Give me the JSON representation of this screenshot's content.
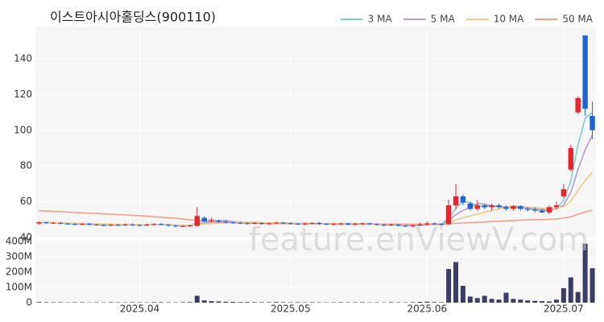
{
  "chart_data": {
    "type": "candlestick",
    "title": "이스트아시아홀딩스(900110)",
    "watermark": "feature.enViewV.com",
    "up_color": "#e8242c",
    "down_color": "#1c64d8",
    "volume_color": "#3a3d68",
    "grid": true,
    "legend": "top-right",
    "xlim": [
      -0.5,
      77.5
    ],
    "xticks": [
      {
        "value": 14,
        "label": "2025.04"
      },
      {
        "value": 35,
        "label": "2025.05"
      },
      {
        "value": 54,
        "label": "2025.06"
      },
      {
        "value": 73,
        "label": "2025.07"
      }
    ],
    "ylim": [
      40,
      158
    ],
    "yticks": [
      40,
      60,
      80,
      100,
      120,
      140
    ],
    "volume_ylim": [
      0,
      410000000
    ],
    "volume_yticks": [
      {
        "value": 0,
        "label": "0"
      },
      {
        "value": 100000000,
        "label": "100M"
      },
      {
        "value": 200000000,
        "label": "200M"
      },
      {
        "value": 300000000,
        "label": "300M"
      },
      {
        "value": 400000000,
        "label": "400M"
      }
    ],
    "open": [
      47.8,
      48.5,
      48,
      48.2,
      47.8,
      47.5,
      47.3,
      47.6,
      47.2,
      47,
      46.8,
      47.1,
      46.9,
      47.3,
      47,
      46.8,
      47.2,
      47.5,
      47.1,
      46.6,
      46.2,
      46.4,
      46.5,
      51,
      49,
      49.5,
      48.8,
      48.5,
      48.2,
      48,
      47.8,
      48.1,
      47.6,
      47.9,
      48.3,
      48,
      47.7,
      47.5,
      47.8,
      48.1,
      47.6,
      47.3,
      47.5,
      47.8,
      47.2,
      47.6,
      47.9,
      47.4,
      47.1,
      46.8,
      47.2,
      46.6,
      46.3,
      46.8,
      47.3,
      47.9,
      47.5,
      47.5,
      58,
      63,
      59,
      56,
      58,
      57,
      58,
      57,
      56,
      57.5,
      56,
      55.5,
      55,
      54,
      57,
      63,
      78,
      110,
      153,
      108
    ],
    "high": [
      49,
      49,
      48.7,
      48.7,
      48.3,
      48,
      48.1,
      48.1,
      47.7,
      47.5,
      47.6,
      47.6,
      47.8,
      47.8,
      47.5,
      47.7,
      48,
      48,
      47.6,
      47.1,
      46.9,
      47.3,
      57,
      52,
      51,
      50,
      49.3,
      49,
      48.7,
      48.5,
      48.6,
      48.6,
      48.4,
      48.8,
      48.8,
      48.5,
      48.2,
      48.3,
      48.6,
      48.6,
      48.1,
      48,
      48.3,
      48.3,
      48.1,
      48.4,
      48.4,
      47.9,
      47.6,
      47.7,
      47.7,
      47.1,
      47.3,
      48.5,
      49,
      48.4,
      48,
      61,
      70,
      64,
      60,
      61,
      59,
      59,
      59,
      58,
      58,
      58,
      57,
      57,
      56,
      58,
      60,
      70,
      92,
      119,
      153,
      116
    ],
    "low": [
      47.3,
      47.5,
      47.5,
      47.3,
      47,
      46.8,
      46.8,
      46.7,
      46.5,
      46.3,
      46.3,
      46.4,
      46.4,
      46.5,
      46.3,
      46.3,
      46.7,
      46.6,
      46.1,
      45.7,
      45.7,
      45.9,
      46.3,
      48.5,
      48.5,
      48.3,
      48,
      47.7,
      47.5,
      47.3,
      47.3,
      47.1,
      47.1,
      47.4,
      47.5,
      47.2,
      47,
      47,
      47.3,
      47.1,
      46.8,
      46.8,
      47,
      46.7,
      46.7,
      47.1,
      46.9,
      46.6,
      46.3,
      46.3,
      46.1,
      45.8,
      45.8,
      46.3,
      46.8,
      47,
      46.7,
      47,
      56,
      58,
      55,
      55,
      56,
      55,
      56,
      55,
      55,
      55,
      54.5,
      54,
      53.5,
      53,
      56,
      62,
      77,
      109,
      108,
      95
    ],
    "close": [
      48.5,
      48,
      48.2,
      47.8,
      47.5,
      47.3,
      47.6,
      47.2,
      47,
      46.8,
      47.1,
      46.9,
      47.3,
      47,
      46.8,
      47.2,
      47.5,
      47.1,
      46.6,
      46.2,
      46.4,
      46.8,
      52,
      49,
      49.5,
      48.8,
      48.5,
      48.2,
      48,
      47.8,
      48.1,
      47.6,
      47.9,
      48.3,
      48,
      47.7,
      47.5,
      47.8,
      48.1,
      47.6,
      47.3,
      47.5,
      47.8,
      47.2,
      47.6,
      47.9,
      47.4,
      47.1,
      46.8,
      47.2,
      46.6,
      46.3,
      46.8,
      47.3,
      47.9,
      47.5,
      47.2,
      58,
      63,
      59.5,
      56,
      58,
      57,
      58,
      57,
      56,
      57.5,
      56,
      55.5,
      55,
      54,
      57,
      58,
      67,
      90,
      118,
      112,
      100
    ],
    "volume": [
      4000000,
      3000000,
      2500000,
      3000000,
      2000000,
      2500000,
      3000000,
      2000000,
      2500000,
      2000000,
      3000000,
      2500000,
      2000000,
      3000000,
      2500000,
      2000000,
      3500000,
      3000000,
      2500000,
      2000000,
      3000000,
      4000000,
      45000000,
      15000000,
      10000000,
      8000000,
      6000000,
      5000000,
      4000000,
      4000000,
      3500000,
      3000000,
      3000000,
      4000000,
      3000000,
      2500000,
      3000000,
      2500000,
      3000000,
      2500000,
      2000000,
      2500000,
      3000000,
      2000000,
      2500000,
      3000000,
      2000000,
      2500000,
      2000000,
      3000000,
      2500000,
      2000000,
      3000000,
      5000000,
      6000000,
      4000000,
      3000000,
      220000000,
      265000000,
      110000000,
      40000000,
      30000000,
      45000000,
      25000000,
      20000000,
      65000000,
      25000000,
      20000000,
      15000000,
      12000000,
      10000000,
      8000000,
      20000000,
      95000000,
      165000000,
      70000000,
      385000000,
      225000000
    ],
    "series": [
      {
        "name": "3 MA",
        "color": "#7fd0cc",
        "values": [
          48.3,
          48.3,
          48.2,
          48,
          47.8,
          47.5,
          47.5,
          47.4,
          47.3,
          47,
          47,
          46.9,
          47.1,
          47.1,
          47,
          47,
          47.2,
          47.3,
          47.1,
          46.6,
          46.4,
          46.5,
          48.4,
          49.3,
          50.2,
          49.1,
          48.9,
          48.5,
          48.2,
          48,
          48,
          47.8,
          47.9,
          47.9,
          48.1,
          48,
          47.7,
          47.7,
          47.8,
          47.8,
          47.7,
          47.5,
          47.5,
          47.5,
          47.5,
          47.6,
          47.6,
          47.5,
          47.1,
          47,
          46.9,
          46.7,
          46.6,
          46.8,
          47.3,
          47.6,
          47.5,
          50.9,
          56.1,
          60.2,
          59.5,
          57.8,
          57,
          57.7,
          57.3,
          57,
          56.8,
          56.5,
          56.3,
          55.5,
          54.8,
          55.3,
          56.3,
          60.7,
          71.7,
          91.7,
          106.7,
          110
        ]
      },
      {
        "name": "5 MA",
        "color": "#b49dc9",
        "values": [
          48.3,
          48.3,
          48.3,
          48.1,
          48,
          47.8,
          47.7,
          47.5,
          47.3,
          47.2,
          47.1,
          47,
          47,
          47,
          47,
          47.1,
          47.2,
          47.1,
          47.1,
          46.9,
          46.8,
          46.6,
          47.6,
          48.1,
          48.7,
          49.2,
          49.6,
          48.8,
          48.6,
          48.3,
          48.1,
          47.9,
          47.9,
          48,
          48,
          47.9,
          47.9,
          47.9,
          47.8,
          47.7,
          47.7,
          47.7,
          47.7,
          47.6,
          47.5,
          47.6,
          47.6,
          47.4,
          47.4,
          47.3,
          47,
          46.8,
          46.7,
          46.8,
          47,
          47.2,
          47.3,
          49.6,
          52.7,
          55.2,
          56.7,
          58.9,
          58.7,
          57.7,
          57.2,
          57.2,
          57.1,
          56.9,
          56.4,
          56,
          55.6,
          55.5,
          56,
          58.2,
          65.2,
          78,
          89,
          97.4
        ]
      },
      {
        "name": "10 MA",
        "color": "#f2c98c",
        "values": [
          48.4,
          48.3,
          48.3,
          48.2,
          48.1,
          48,
          47.9,
          47.8,
          47.6,
          47.5,
          47.4,
          47.3,
          47.2,
          47.1,
          47.1,
          47,
          47.1,
          47.1,
          47,
          47,
          46.9,
          46.8,
          47.3,
          47.5,
          47.8,
          48,
          48.2,
          48.4,
          48.5,
          48.6,
          48.7,
          48.3,
          48.2,
          48.1,
          48.1,
          48,
          47.9,
          47.9,
          47.9,
          47.8,
          47.8,
          47.8,
          47.8,
          47.7,
          47.7,
          47.6,
          47.6,
          47.5,
          47.4,
          47.4,
          47.3,
          47.2,
          47.1,
          47.1,
          47.2,
          47.2,
          47.1,
          48.2,
          49.8,
          51.1,
          52,
          53.1,
          54.1,
          55.1,
          56,
          56.9,
          57.8,
          57.6,
          57,
          56.6,
          56.4,
          56.3,
          56.4,
          57.3,
          60.4,
          66.3,
          71.9,
          76.4
        ]
      },
      {
        "name": "50 MA",
        "color": "#f0a08e",
        "values": [
          55,
          54.8,
          54.6,
          54.4,
          54.2,
          54,
          53.8,
          53.6,
          53.4,
          53.2,
          53,
          52.8,
          52.6,
          52.4,
          52.2,
          51.9,
          51.6,
          51.3,
          51,
          50.7,
          50.3,
          49.9,
          49.5,
          49.1,
          48.8,
          48.5,
          48.3,
          48.2,
          48.1,
          48,
          47.9,
          47.9,
          47.8,
          47.8,
          47.8,
          47.7,
          47.7,
          47.7,
          47.7,
          47.6,
          47.6,
          47.6,
          47.6,
          47.6,
          47.6,
          47.6,
          47.5,
          47.5,
          47.5,
          47.5,
          47.5,
          47.4,
          47.4,
          47.4,
          47.4,
          47.4,
          47.4,
          47.6,
          47.9,
          48.1,
          48.3,
          48.5,
          48.7,
          48.9,
          49.1,
          49.3,
          49.5,
          49.7,
          49.8,
          49.9,
          50,
          50.2,
          50.4,
          50.8,
          51.6,
          53,
          54.3,
          55.3
        ]
      }
    ]
  }
}
